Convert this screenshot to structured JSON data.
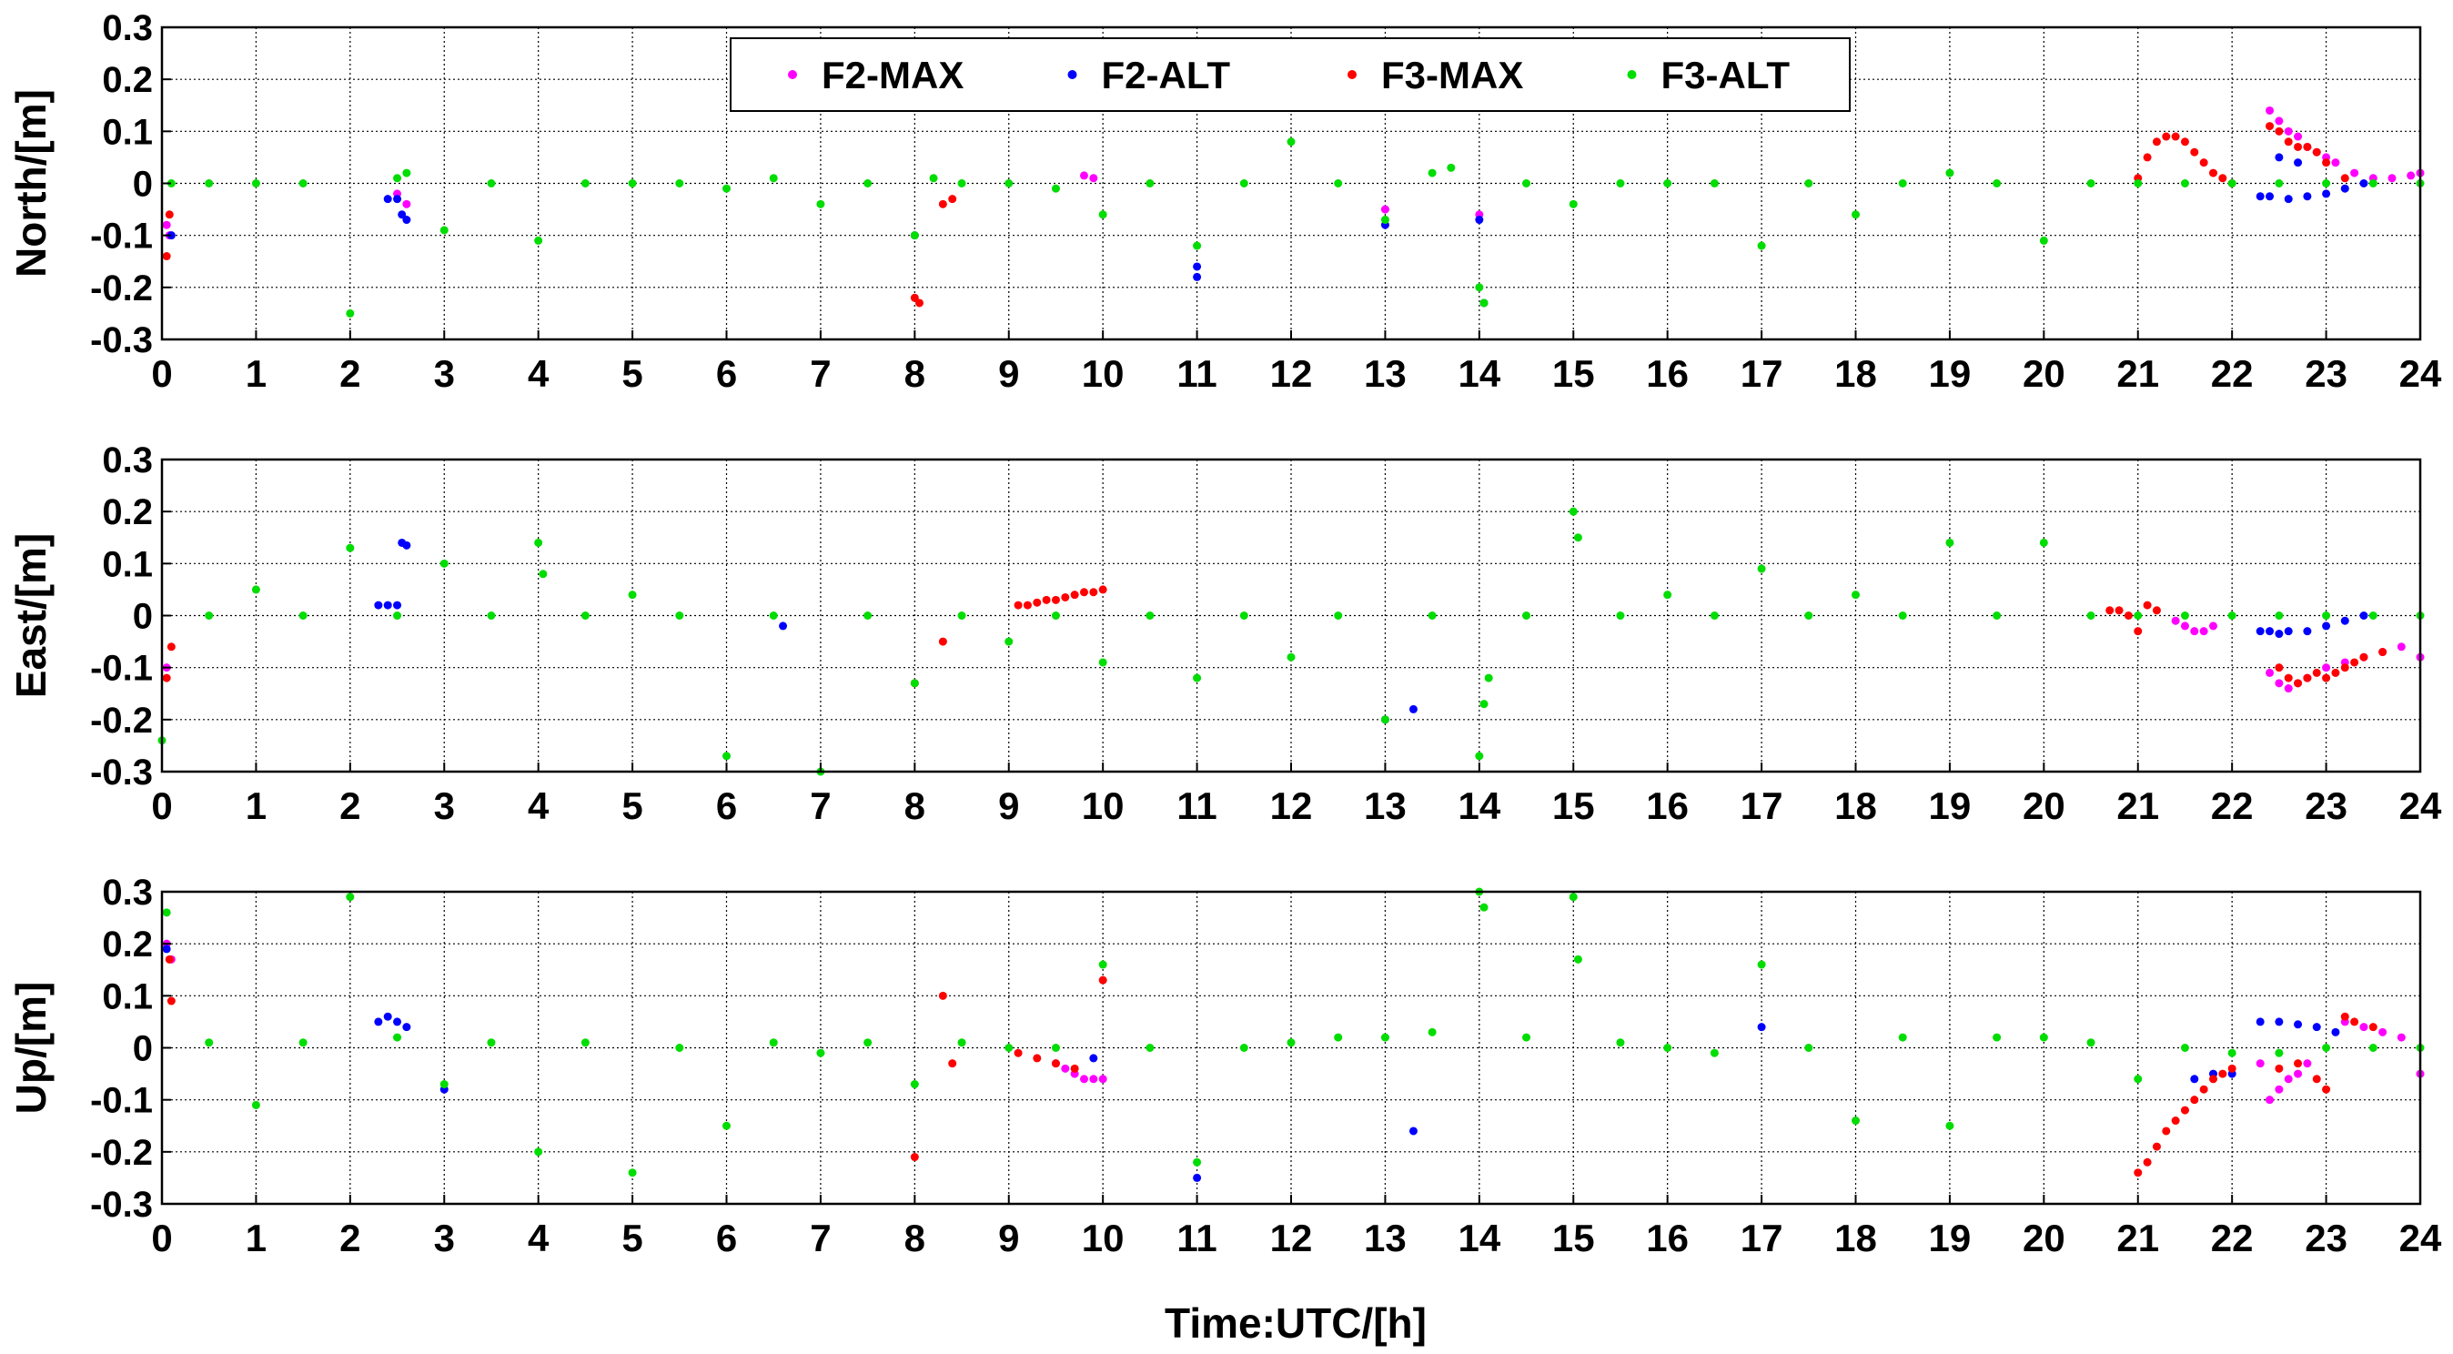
{
  "figure": {
    "xlabel": "Time:UTC/[h]"
  },
  "legend": {
    "placement": "top-center",
    "entries": [
      {
        "label": "F2-MAX",
        "color": "#ff00ff"
      },
      {
        "label": "F2-ALT",
        "color": "#0000ff"
      },
      {
        "label": "F3-MAX",
        "color": "#ff0000"
      },
      {
        "label": "F3-ALT",
        "color": "#00dd00"
      }
    ]
  },
  "chart_data": [
    {
      "type": "scatter",
      "panel": "north",
      "ylabel": "North/[m]",
      "xlim": [
        0,
        24
      ],
      "ylim": [
        -0.3,
        0.3
      ],
      "xticks": [
        0,
        1,
        2,
        3,
        4,
        5,
        6,
        7,
        8,
        9,
        10,
        11,
        12,
        13,
        14,
        15,
        16,
        17,
        18,
        19,
        20,
        21,
        22,
        23,
        24
      ],
      "yticks": [
        0.3,
        0.2,
        0.1,
        0,
        -0.1,
        -0.2,
        -0.3
      ],
      "ytick_labels": [
        "0.3",
        "0.2",
        "0.1",
        "0",
        "-0.1",
        "-0.2",
        "-0.3"
      ],
      "grid": true,
      "series": [
        {
          "name": "F2-MAX",
          "color": "#ff00ff",
          "x": [
            0.05,
            0.08,
            2.5,
            2.6,
            9.8,
            9.9,
            13.0,
            14.0,
            22.4,
            22.5,
            22.6,
            22.7,
            22.8,
            22.9,
            23.0,
            23.1,
            23.3,
            23.5,
            23.7,
            23.9,
            24.0
          ],
          "y": [
            -0.08,
            -0.1,
            -0.02,
            -0.04,
            0.015,
            0.01,
            -0.05,
            -0.06,
            0.14,
            0.12,
            0.1,
            0.09,
            0.07,
            0.06,
            0.05,
            0.04,
            0.02,
            0.01,
            0.01,
            0.015,
            0.02
          ]
        },
        {
          "name": "F2-ALT",
          "color": "#0000ff",
          "x": [
            0.1,
            2.4,
            2.5,
            2.55,
            2.6,
            8.0,
            11.0,
            11.0,
            13.0,
            14.0,
            14.05,
            22.3,
            22.4,
            22.6,
            22.8,
            23.0,
            23.2,
            23.4,
            22.5,
            22.7
          ],
          "y": [
            -0.1,
            -0.03,
            -0.03,
            -0.06,
            -0.07,
            -0.1,
            -0.16,
            -0.18,
            -0.08,
            -0.07,
            -0.23,
            -0.025,
            -0.025,
            -0.03,
            -0.025,
            -0.02,
            -0.01,
            0,
            0.05,
            0.04
          ]
        },
        {
          "name": "F3-MAX",
          "color": "#ff0000",
          "x": [
            0.05,
            0.08,
            8.0,
            8.05,
            8.3,
            8.4,
            21.0,
            21.1,
            21.2,
            21.3,
            21.4,
            21.5,
            21.6,
            21.7,
            21.8,
            21.9,
            22.0,
            22.4,
            22.5,
            22.6,
            22.7,
            22.8,
            22.9,
            23.0,
            23.2
          ],
          "y": [
            -0.14,
            -0.06,
            -0.22,
            -0.23,
            -0.04,
            -0.03,
            0.01,
            0.05,
            0.08,
            0.09,
            0.09,
            0.08,
            0.06,
            0.04,
            0.02,
            0.01,
            0.0,
            0.11,
            0.1,
            0.08,
            0.07,
            0.07,
            0.06,
            0.04,
            0.01
          ]
        },
        {
          "name": "F3-ALT",
          "color": "#00dd00",
          "x": [
            0.1,
            0.5,
            1.0,
            1.5,
            2.0,
            2.5,
            2.6,
            3.0,
            3.5,
            4.0,
            4.5,
            5.0,
            5.5,
            6.0,
            6.5,
            7.0,
            7.5,
            8.0,
            8.2,
            8.5,
            9.0,
            9.5,
            10.0,
            10.5,
            11.0,
            11.5,
            12.0,
            12.5,
            13.0,
            13.5,
            13.7,
            14.0,
            14.05,
            14.5,
            15.0,
            15.5,
            16.0,
            16.5,
            17.0,
            17.5,
            18.0,
            18.5,
            19.0,
            19.5,
            20.0,
            20.5,
            21.0,
            21.5,
            22.0,
            22.5,
            23.0,
            23.5,
            24.0
          ],
          "y": [
            0,
            0,
            0,
            0,
            -0.25,
            0.01,
            0.02,
            -0.09,
            0,
            -0.11,
            0,
            0,
            0,
            -0.01,
            0.01,
            -0.04,
            0,
            -0.1,
            0.01,
            0,
            0,
            -0.01,
            -0.06,
            0,
            -0.12,
            0,
            0.08,
            0,
            -0.07,
            0.02,
            0.03,
            -0.2,
            -0.23,
            0,
            -0.04,
            0,
            0,
            0,
            -0.12,
            0,
            -0.06,
            0,
            0.02,
            0,
            -0.11,
            0,
            0,
            0,
            0,
            0,
            0,
            0,
            0
          ]
        }
      ]
    },
    {
      "type": "scatter",
      "panel": "east",
      "ylabel": "East/[m]",
      "xlim": [
        0,
        24
      ],
      "ylim": [
        -0.3,
        0.3
      ],
      "xticks": [
        0,
        1,
        2,
        3,
        4,
        5,
        6,
        7,
        8,
        9,
        10,
        11,
        12,
        13,
        14,
        15,
        16,
        17,
        18,
        19,
        20,
        21,
        22,
        23,
        24
      ],
      "yticks": [
        0.3,
        0.2,
        0.1,
        0,
        -0.1,
        -0.2,
        -0.3
      ],
      "ytick_labels": [
        "0.3",
        "0.2",
        "0.1",
        "0",
        "-0.1",
        "-0.2",
        "-0.3"
      ],
      "grid": true,
      "series": [
        {
          "name": "F2-MAX",
          "color": "#ff00ff",
          "x": [
            0.05,
            21.4,
            21.5,
            21.6,
            21.7,
            21.8,
            22.4,
            22.5,
            22.6,
            22.7,
            22.8,
            23.0,
            23.2,
            23.4,
            23.6,
            23.8,
            24.0
          ],
          "y": [
            -0.1,
            -0.01,
            -0.02,
            -0.03,
            -0.03,
            -0.02,
            -0.11,
            -0.13,
            -0.14,
            -0.13,
            -0.12,
            -0.1,
            -0.09,
            -0.08,
            -0.07,
            -0.06,
            -0.08
          ]
        },
        {
          "name": "F2-ALT",
          "color": "#0000ff",
          "x": [
            2.3,
            2.4,
            2.5,
            2.55,
            2.6,
            6.6,
            13.0,
            13.3,
            22.3,
            22.4,
            22.5,
            22.6,
            22.8,
            23.0,
            23.2,
            23.4
          ],
          "y": [
            0.02,
            0.02,
            0.02,
            0.14,
            0.135,
            -0.02,
            -0.2,
            -0.18,
            -0.03,
            -0.03,
            -0.035,
            -0.03,
            -0.03,
            -0.02,
            -0.01,
            0
          ]
        },
        {
          "name": "F3-MAX",
          "color": "#ff0000",
          "x": [
            0.05,
            0.1,
            8.0,
            8.3,
            9.1,
            9.2,
            9.3,
            9.4,
            9.5,
            9.6,
            9.7,
            9.8,
            9.9,
            10.0,
            20.7,
            20.8,
            20.9,
            21.0,
            21.1,
            21.2,
            22.5,
            22.6,
            22.7,
            22.8,
            22.9,
            23.0,
            23.1,
            23.2,
            23.3,
            23.4,
            23.6
          ],
          "y": [
            -0.12,
            -0.06,
            -0.13,
            -0.05,
            0.02,
            0.02,
            0.025,
            0.03,
            0.03,
            0.035,
            0.04,
            0.045,
            0.045,
            0.05,
            0.01,
            0.01,
            0.0,
            -0.03,
            0.02,
            0.01,
            -0.1,
            -0.12,
            -0.13,
            -0.12,
            -0.11,
            -0.12,
            -0.11,
            -0.1,
            -0.09,
            -0.08,
            -0.07
          ]
        },
        {
          "name": "F3-ALT",
          "color": "#00dd00",
          "x": [
            0.0,
            0.5,
            1.0,
            1.5,
            2.0,
            2.5,
            3.0,
            3.5,
            4.0,
            4.05,
            4.5,
            5.0,
            5.5,
            6.0,
            6.5,
            7.0,
            7.5,
            8.0,
            8.5,
            9.0,
            9.5,
            10.0,
            10.5,
            11.0,
            11.5,
            12.0,
            12.5,
            13.0,
            13.5,
            14.0,
            14.05,
            14.1,
            14.5,
            15.0,
            15.05,
            15.5,
            16.0,
            16.5,
            17.0,
            17.5,
            18.0,
            18.5,
            19.0,
            19.5,
            20.0,
            20.5,
            21.0,
            21.5,
            22.0,
            22.5,
            23.0,
            23.5,
            24.0
          ],
          "y": [
            -0.24,
            0,
            0.05,
            0,
            0.13,
            0,
            0.1,
            0,
            0.14,
            0.08,
            0,
            0.04,
            0,
            -0.27,
            0,
            -0.3,
            0,
            -0.13,
            0,
            -0.05,
            0,
            -0.09,
            0,
            -0.12,
            0,
            -0.08,
            0,
            -0.2,
            0,
            -0.27,
            -0.17,
            -0.12,
            0,
            0.2,
            0.15,
            0,
            0.04,
            0,
            0.09,
            0,
            0.04,
            0,
            0.14,
            0,
            0.14,
            0,
            0,
            0,
            0,
            0,
            0,
            0,
            0
          ]
        }
      ]
    },
    {
      "type": "scatter",
      "panel": "up",
      "ylabel": "Up/[m]",
      "xlim": [
        0,
        24
      ],
      "ylim": [
        -0.3,
        0.3
      ],
      "xticks": [
        0,
        1,
        2,
        3,
        4,
        5,
        6,
        7,
        8,
        9,
        10,
        11,
        12,
        13,
        14,
        15,
        16,
        17,
        18,
        19,
        20,
        21,
        22,
        23,
        24
      ],
      "yticks": [
        0.3,
        0.2,
        0.1,
        0,
        -0.1,
        -0.2,
        -0.3
      ],
      "ytick_labels": [
        "0.3",
        "0.2",
        "0.1",
        "0",
        "-0.1",
        "-0.2",
        "-0.3"
      ],
      "grid": true,
      "series": [
        {
          "name": "F2-MAX",
          "color": "#ff00ff",
          "x": [
            0.05,
            0.1,
            9.5,
            9.6,
            9.7,
            9.8,
            9.9,
            10.0,
            22.3,
            22.4,
            22.5,
            22.6,
            22.7,
            22.8,
            23.2,
            23.4,
            23.6,
            23.8,
            24.0
          ],
          "y": [
            0.2,
            0.17,
            -0.03,
            -0.04,
            -0.05,
            -0.06,
            -0.06,
            -0.06,
            -0.03,
            -0.1,
            -0.08,
            -0.06,
            -0.05,
            -0.03,
            0.05,
            0.04,
            0.03,
            0.02,
            -0.05
          ]
        },
        {
          "name": "F2-ALT",
          "color": "#0000ff",
          "x": [
            0.05,
            2.3,
            2.4,
            2.5,
            2.6,
            3.0,
            9.9,
            11.0,
            13.3,
            17.0,
            21.6,
            21.8,
            22.0,
            22.3,
            22.5,
            22.7,
            22.9,
            23.1
          ],
          "y": [
            0.19,
            0.05,
            0.06,
            0.05,
            0.04,
            -0.08,
            -0.02,
            -0.25,
            -0.16,
            0.04,
            -0.06,
            -0.05,
            -0.05,
            0.05,
            0.05,
            0.045,
            0.04,
            0.03
          ]
        },
        {
          "name": "F3-MAX",
          "color": "#ff0000",
          "x": [
            0.08,
            0.1,
            8.0,
            8.3,
            8.4,
            9.1,
            9.3,
            9.5,
            9.7,
            10.0,
            21.0,
            21.1,
            21.2,
            21.3,
            21.4,
            21.5,
            21.6,
            21.7,
            21.8,
            21.9,
            22.0,
            22.5,
            22.7,
            22.9,
            23.0,
            23.2,
            23.3,
            23.5
          ],
          "y": [
            0.17,
            0.09,
            -0.21,
            0.1,
            -0.03,
            -0.01,
            -0.02,
            -0.03,
            -0.04,
            0.13,
            -0.24,
            -0.22,
            -0.19,
            -0.16,
            -0.14,
            -0.12,
            -0.1,
            -0.08,
            -0.06,
            -0.05,
            -0.04,
            -0.04,
            -0.03,
            -0.06,
            -0.08,
            0.06,
            0.05,
            0.04
          ]
        },
        {
          "name": "F3-ALT",
          "color": "#00dd00",
          "x": [
            0.05,
            0.5,
            1.0,
            1.5,
            2.0,
            2.5,
            3.0,
            3.5,
            4.0,
            4.5,
            5.0,
            5.5,
            6.0,
            6.5,
            7.0,
            7.5,
            8.0,
            8.5,
            9.0,
            9.5,
            10.0,
            10.5,
            11.0,
            11.5,
            12.0,
            12.5,
            13.0,
            13.5,
            14.0,
            14.05,
            14.5,
            15.0,
            15.05,
            15.5,
            16.0,
            16.5,
            17.0,
            17.5,
            18.0,
            18.5,
            19.0,
            19.5,
            20.0,
            20.5,
            21.0,
            21.5,
            22.0,
            22.5,
            23.0,
            23.5,
            24.0
          ],
          "y": [
            0.26,
            0.01,
            -0.11,
            0.01,
            0.29,
            0.02,
            -0.07,
            0.01,
            -0.2,
            0.01,
            -0.24,
            0,
            -0.15,
            0.01,
            -0.01,
            0.01,
            -0.07,
            0.01,
            0,
            0,
            0.16,
            0,
            -0.22,
            0,
            0.01,
            0.02,
            0.02,
            0.03,
            0.3,
            0.27,
            0.02,
            0.29,
            0.17,
            0.01,
            0,
            -0.01,
            0.16,
            0,
            -0.14,
            0.02,
            -0.15,
            0.02,
            0.02,
            0.01,
            -0.06,
            0,
            -0.01,
            -0.01,
            0,
            0,
            0
          ]
        }
      ]
    }
  ]
}
